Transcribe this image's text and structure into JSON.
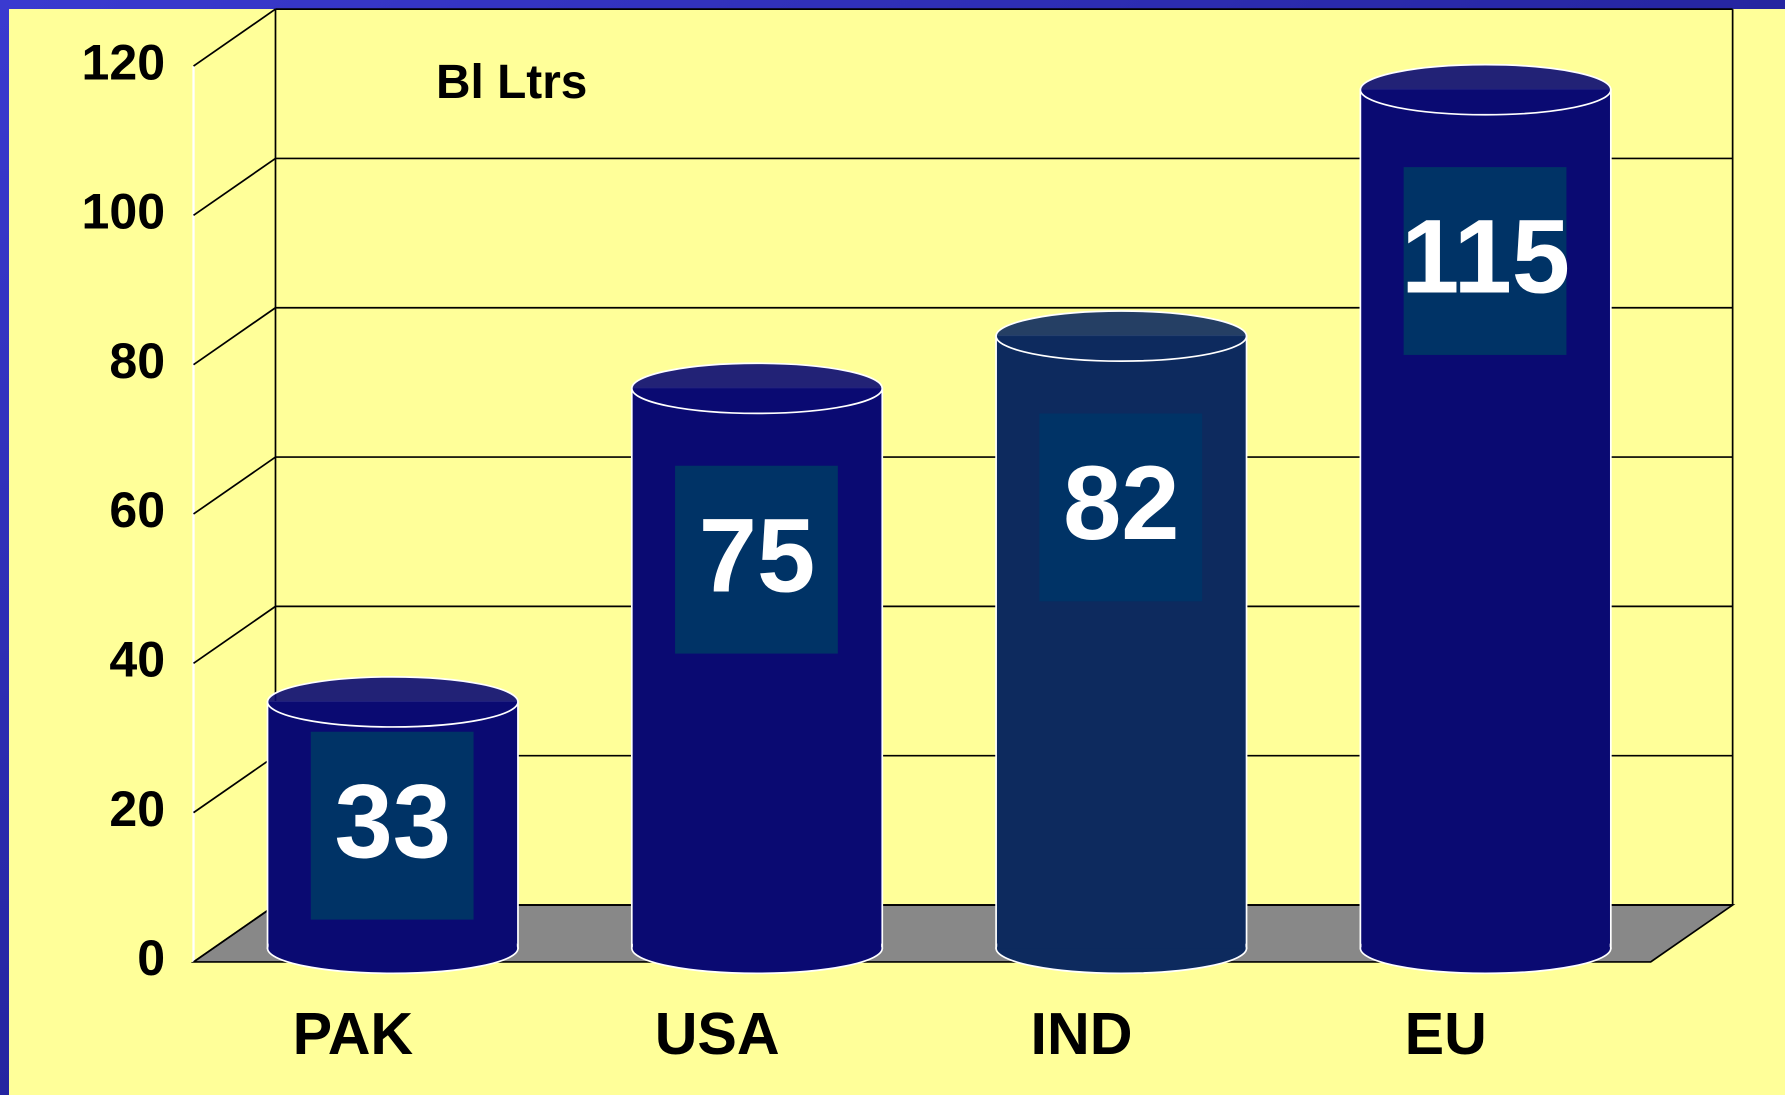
{
  "chart_data": {
    "type": "bar",
    "annotation": "Bl Ltrs",
    "categories": [
      "PAK",
      "USA",
      "IND",
      "EU"
    ],
    "values": [
      33,
      75,
      82,
      115
    ],
    "colors": [
      "#0a0a72",
      "#0a0a72",
      "#0d2a5e",
      "#0a0a72"
    ],
    "ylim": [
      0,
      120
    ],
    "yticks": [
      0,
      20,
      40,
      60,
      80,
      100,
      120
    ],
    "grid": true
  }
}
